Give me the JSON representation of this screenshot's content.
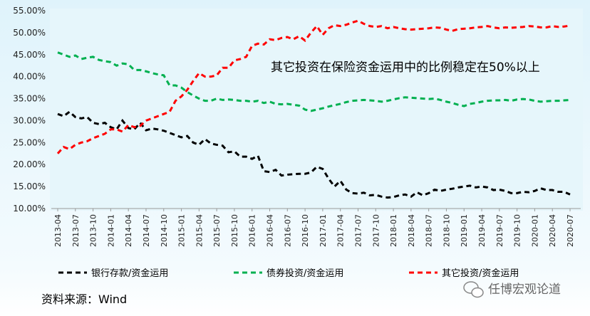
{
  "chart_data": {
    "type": "line",
    "annotation": "其它投资在保险资金运用中的比例稳定在50%以上",
    "source": "资料来源：Wind",
    "watermark": "任博宏观论道",
    "categories": [
      "2013-04",
      null,
      null,
      "2013-07",
      null,
      null,
      "2013-10",
      null,
      null,
      "2014-01",
      null,
      null,
      "2014-04",
      null,
      null,
      "2014-07",
      null,
      null,
      "2014-10",
      null,
      null,
      "2015-01",
      null,
      null,
      "2015-04",
      null,
      null,
      "2015-07",
      null,
      null,
      "2015-10",
      null,
      null,
      "2016-01",
      null,
      null,
      "2016-04",
      null,
      null,
      "2016-07",
      null,
      null,
      "2016-10",
      null,
      null,
      "2017-01",
      null,
      null,
      "2017-04",
      null,
      null,
      "2017-07",
      null,
      null,
      "2017-10",
      null,
      null,
      "2018-01",
      null,
      null,
      "2018-04",
      null,
      null,
      "2018-07",
      null,
      null,
      "2018-10",
      null,
      null,
      "2019-01",
      null,
      null,
      "2019-04",
      null,
      null,
      "2019-07",
      null,
      null,
      "2019-10",
      null,
      null,
      "2020-01",
      null,
      null,
      "2020-04",
      null,
      null,
      "2020-07"
    ],
    "series": [
      {
        "name": "银行存款/资金运用",
        "color": "#000000",
        "values": [
          31.5,
          31,
          32,
          30.8,
          30.5,
          30.8,
          29.5,
          29.2,
          29.5,
          28.5,
          28,
          30,
          28.3,
          28,
          29.5,
          27.8,
          28.2,
          28,
          27.7,
          27.2,
          26.7,
          26.2,
          26.5,
          25,
          24.5,
          25.8,
          24.8,
          24.5,
          24.3,
          22.8,
          23,
          21.8,
          21.8,
          21.3,
          22,
          18.5,
          18.3,
          18.8,
          17.5,
          17.7,
          17.8,
          17.9,
          17.9,
          18.2,
          19.5,
          19,
          16.8,
          15,
          16.3,
          14.3,
          13.5,
          13.4,
          13.6,
          13,
          13.1,
          12.7,
          12.5,
          12.6,
          13,
          13.2,
          12.7,
          13.7,
          13,
          13.5,
          14.3,
          14,
          14.3,
          14.5,
          14.8,
          15,
          15.2,
          14.8,
          15,
          14.8,
          14.2,
          14.3,
          14,
          13.5,
          13.5,
          13.8,
          13.7,
          14,
          14.6,
          14.2,
          14.2,
          13.8,
          13.8,
          13.2
        ]
      },
      {
        "name": "债券投资/资金运用",
        "color": "#00b050",
        "values": [
          45.5,
          45,
          44.5,
          44.8,
          44,
          44.3,
          44.5,
          43.8,
          43.5,
          43.3,
          42.5,
          43,
          42.8,
          41.5,
          41.5,
          41.2,
          40.8,
          40.5,
          40.3,
          38,
          38,
          37.5,
          36.5,
          35.7,
          35,
          34.5,
          34.5,
          35,
          34.7,
          34.8,
          34.7,
          34.5,
          34.5,
          34.3,
          34.5,
          34,
          34.3,
          33.8,
          33.7,
          33.8,
          33.6,
          33.4,
          32.5,
          32.2,
          32.5,
          32.8,
          33.2,
          33.5,
          33.8,
          34.2,
          34.5,
          34.6,
          34.7,
          34.6,
          34.5,
          34.3,
          34.5,
          34.8,
          35.1,
          35.3,
          35.2,
          35.1,
          35,
          34.9,
          35,
          34.7,
          34.3,
          34,
          33.6,
          33.3,
          33.8,
          34,
          34.3,
          34.5,
          34.6,
          34.6,
          34.7,
          34.5,
          34.8,
          34.9,
          34.8,
          34.5,
          34.3,
          34.4,
          34.5,
          34.5,
          34.6,
          34.7
        ]
      },
      {
        "name": "其它投资/资金运用",
        "color": "#ff0000",
        "values": [
          22.5,
          24,
          23.5,
          24.5,
          25,
          25.3,
          26,
          26.5,
          27,
          28,
          28,
          27.5,
          29,
          28.5,
          28.8,
          30,
          30.5,
          31,
          31.5,
          32,
          34.5,
          35.5,
          37,
          39,
          40.8,
          40,
          40,
          40.3,
          42,
          42,
          43.7,
          44,
          44.5,
          47,
          47.5,
          47.3,
          48.5,
          48.3,
          48.8,
          49,
          48.5,
          49.2,
          48.2,
          50,
          51.5,
          49.5,
          51,
          51.7,
          51.5,
          51.8,
          52.3,
          52.7,
          52,
          51.5,
          51.3,
          51.5,
          51,
          51.3,
          51,
          50.8,
          50.7,
          50.8,
          50.9,
          51,
          51.2,
          51.1,
          50.7,
          50.4,
          50.8,
          50.9,
          51,
          51.2,
          51.3,
          51.5,
          51.2,
          51,
          51.2,
          51.1,
          51.2,
          51.3,
          51.5,
          51.4,
          51.2,
          51.2,
          51.5,
          51.3,
          51.4,
          51.6
        ]
      }
    ],
    "ylim": [
      10,
      55
    ],
    "yticks": [
      {
        "value": 10,
        "label": "10.00%"
      },
      {
        "value": 15,
        "label": "15.00%"
      },
      {
        "value": 20,
        "label": "20.00%"
      },
      {
        "value": 25,
        "label": "25.00%"
      },
      {
        "value": 30,
        "label": "30.00%"
      },
      {
        "value": 35,
        "label": "35.00%"
      },
      {
        "value": 40,
        "label": "40.00%"
      },
      {
        "value": 45,
        "label": "45.00%"
      },
      {
        "value": 50,
        "label": "50.00%"
      },
      {
        "value": 55,
        "label": "55.00%"
      }
    ],
    "grid": false
  }
}
